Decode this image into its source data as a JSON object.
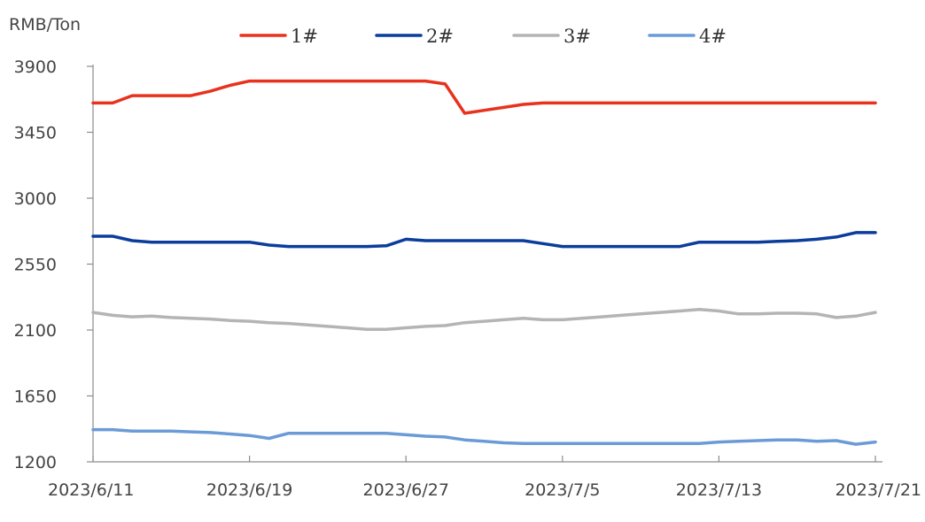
{
  "chart_data": {
    "type": "line",
    "ylabel": "RMB/Ton",
    "ylim": [
      1200,
      3900
    ],
    "yticks": [
      1200,
      1650,
      2100,
      2550,
      3000,
      3450,
      3900
    ],
    "xlim": [
      "2023/6/11",
      "2023/7/21"
    ],
    "xticks": [
      "2023/6/11",
      "2023/6/19",
      "2023/6/27",
      "2023/7/5",
      "2023/7/13",
      "2023/7/21"
    ],
    "legend_position": "top",
    "grid": false,
    "series": [
      {
        "name": "1#",
        "color": "#e8321e",
        "x": [
          "2023/6/11",
          "2023/6/12",
          "2023/6/13",
          "2023/6/14",
          "2023/6/15",
          "2023/6/16",
          "2023/6/17",
          "2023/6/18",
          "2023/6/19",
          "2023/6/20",
          "2023/6/21",
          "2023/6/22",
          "2023/6/23",
          "2023/6/24",
          "2023/6/25",
          "2023/6/26",
          "2023/6/27",
          "2023/6/28",
          "2023/6/29",
          "2023/6/30",
          "2023/7/1",
          "2023/7/2",
          "2023/7/3",
          "2023/7/4",
          "2023/7/5",
          "2023/7/6",
          "2023/7/7",
          "2023/7/8",
          "2023/7/9",
          "2023/7/10",
          "2023/7/11",
          "2023/7/12",
          "2023/7/13",
          "2023/7/14",
          "2023/7/15",
          "2023/7/16",
          "2023/7/17",
          "2023/7/18",
          "2023/7/19",
          "2023/7/20",
          "2023/7/21"
        ],
        "values": [
          3650,
          3650,
          3700,
          3700,
          3700,
          3700,
          3730,
          3770,
          3800,
          3800,
          3800,
          3800,
          3800,
          3800,
          3800,
          3800,
          3800,
          3800,
          3780,
          3580,
          3600,
          3620,
          3640,
          3650,
          3650,
          3650,
          3650,
          3650,
          3650,
          3650,
          3650,
          3650,
          3650,
          3650,
          3650,
          3650,
          3650,
          3650,
          3650,
          3650,
          3650
        ]
      },
      {
        "name": "2#",
        "color": "#0a3d9c",
        "x": [
          "2023/6/11",
          "2023/6/12",
          "2023/6/13",
          "2023/6/14",
          "2023/6/15",
          "2023/6/16",
          "2023/6/17",
          "2023/6/18",
          "2023/6/19",
          "2023/6/20",
          "2023/6/21",
          "2023/6/22",
          "2023/6/23",
          "2023/6/24",
          "2023/6/25",
          "2023/6/26",
          "2023/6/27",
          "2023/6/28",
          "2023/6/29",
          "2023/6/30",
          "2023/7/1",
          "2023/7/2",
          "2023/7/3",
          "2023/7/4",
          "2023/7/5",
          "2023/7/6",
          "2023/7/7",
          "2023/7/8",
          "2023/7/9",
          "2023/7/10",
          "2023/7/11",
          "2023/7/12",
          "2023/7/13",
          "2023/7/14",
          "2023/7/15",
          "2023/7/16",
          "2023/7/17",
          "2023/7/18",
          "2023/7/19",
          "2023/7/20",
          "2023/7/21"
        ],
        "values": [
          2740,
          2740,
          2710,
          2700,
          2700,
          2700,
          2700,
          2700,
          2700,
          2680,
          2670,
          2670,
          2670,
          2670,
          2670,
          2675,
          2720,
          2710,
          2710,
          2710,
          2710,
          2710,
          2710,
          2690,
          2670,
          2670,
          2670,
          2670,
          2670,
          2670,
          2670,
          2700,
          2700,
          2700,
          2700,
          2705,
          2710,
          2720,
          2735,
          2765,
          2765
        ]
      },
      {
        "name": "3#",
        "color": "#b4b4b4",
        "x": [
          "2023/6/11",
          "2023/6/12",
          "2023/6/13",
          "2023/6/14",
          "2023/6/15",
          "2023/6/16",
          "2023/6/17",
          "2023/6/18",
          "2023/6/19",
          "2023/6/20",
          "2023/6/21",
          "2023/6/22",
          "2023/6/23",
          "2023/6/24",
          "2023/6/25",
          "2023/6/26",
          "2023/6/27",
          "2023/6/28",
          "2023/6/29",
          "2023/6/30",
          "2023/7/1",
          "2023/7/2",
          "2023/7/3",
          "2023/7/4",
          "2023/7/5",
          "2023/7/6",
          "2023/7/7",
          "2023/7/8",
          "2023/7/9",
          "2023/7/10",
          "2023/7/11",
          "2023/7/12",
          "2023/7/13",
          "2023/7/14",
          "2023/7/15",
          "2023/7/16",
          "2023/7/17",
          "2023/7/18",
          "2023/7/19",
          "2023/7/20",
          "2023/7/21"
        ],
        "values": [
          2220,
          2200,
          2190,
          2195,
          2185,
          2180,
          2175,
          2165,
          2160,
          2150,
          2145,
          2135,
          2125,
          2115,
          2105,
          2105,
          2115,
          2125,
          2130,
          2150,
          2160,
          2170,
          2180,
          2170,
          2170,
          2180,
          2190,
          2200,
          2210,
          2220,
          2230,
          2240,
          2230,
          2210,
          2210,
          2215,
          2215,
          2210,
          2185,
          2195,
          2220
        ]
      },
      {
        "name": "4#",
        "color": "#6b9bd6",
        "x": [
          "2023/6/11",
          "2023/6/12",
          "2023/6/13",
          "2023/6/14",
          "2023/6/15",
          "2023/6/16",
          "2023/6/17",
          "2023/6/18",
          "2023/6/19",
          "2023/6/20",
          "2023/6/21",
          "2023/6/22",
          "2023/6/23",
          "2023/6/24",
          "2023/6/25",
          "2023/6/26",
          "2023/6/27",
          "2023/6/28",
          "2023/6/29",
          "2023/6/30",
          "2023/7/1",
          "2023/7/2",
          "2023/7/3",
          "2023/7/4",
          "2023/7/5",
          "2023/7/6",
          "2023/7/7",
          "2023/7/8",
          "2023/7/9",
          "2023/7/10",
          "2023/7/11",
          "2023/7/12",
          "2023/7/13",
          "2023/7/14",
          "2023/7/15",
          "2023/7/16",
          "2023/7/17",
          "2023/7/18",
          "2023/7/19",
          "2023/7/20",
          "2023/7/21"
        ],
        "values": [
          1420,
          1420,
          1410,
          1410,
          1410,
          1405,
          1400,
          1390,
          1380,
          1360,
          1395,
          1395,
          1395,
          1395,
          1395,
          1395,
          1385,
          1375,
          1370,
          1350,
          1340,
          1330,
          1325,
          1325,
          1325,
          1325,
          1325,
          1325,
          1325,
          1325,
          1325,
          1325,
          1335,
          1340,
          1345,
          1350,
          1350,
          1340,
          1345,
          1320,
          1335
        ]
      }
    ]
  }
}
